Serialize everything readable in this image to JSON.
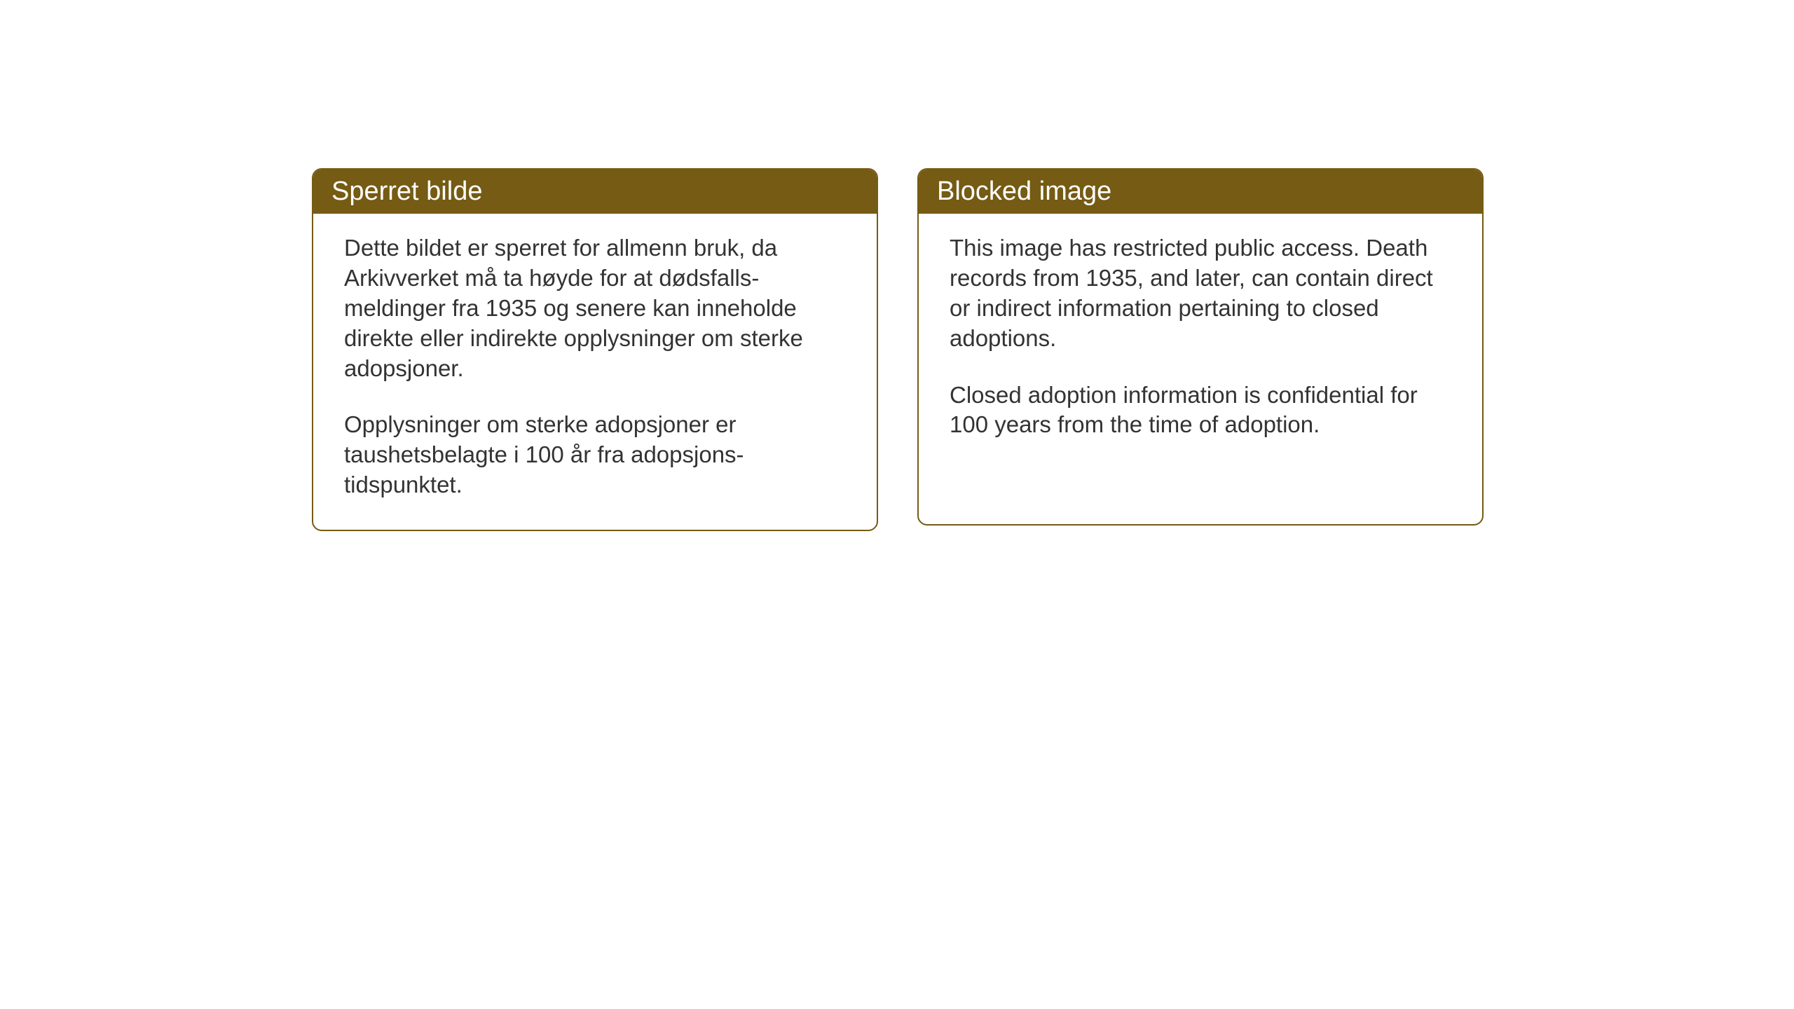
{
  "notices": {
    "norwegian": {
      "title": "Sperret bilde",
      "paragraph1": "Dette bildet er sperret for allmenn bruk, da Arkivverket må ta høyde for at dødsfalls-meldinger fra 1935 og senere kan inneholde direkte eller indirekte opplysninger om sterke adopsjoner.",
      "paragraph2": "Opplysninger om sterke adopsjoner er taushetsbelagte i 100 år fra adopsjons-tidspunktet."
    },
    "english": {
      "title": "Blocked image",
      "paragraph1": "This image has restricted public access. Death records from 1935, and later, can contain direct or indirect information pertaining to closed adoptions.",
      "paragraph2": "Closed adoption information is confidential for 100 years from the time of adoption."
    }
  },
  "styling": {
    "header_background": "#755b13",
    "header_text_color": "#ffffff",
    "border_color": "#755b13",
    "body_text_color": "#333333",
    "background_color": "#ffffff",
    "border_radius": 14,
    "header_fontsize": 38,
    "body_fontsize": 33
  }
}
